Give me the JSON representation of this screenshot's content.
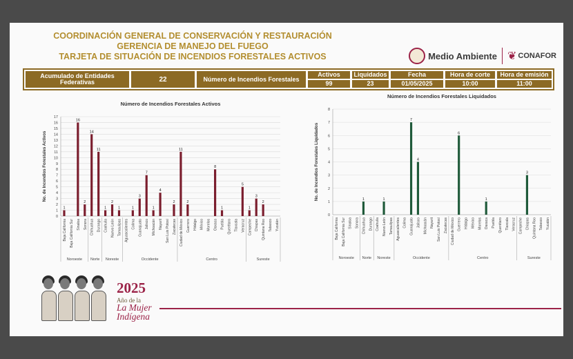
{
  "header": {
    "line1": "COORDINACIÓN GENERAL DE CONSERVACIÓN Y RESTAURACIÓN",
    "line2": "GERENCIA DE MANEJO DEL FUEGO",
    "line3": "TARJETA DE SITUACIÓN DE INCENDIOS FORESTALES ACTIVOS",
    "logo_medio_ambiente": "Medio Ambiente",
    "logo_conafor": "CONAFOR"
  },
  "stats": {
    "acumulado_label": "Acumulado de Entidades Federativas",
    "acumulado_value": "22",
    "numero_label": "Número de Incendios Forestales",
    "activos_label": "Activos",
    "activos_value": "99",
    "liquidados_label": "Liquidados",
    "liquidados_value": "23",
    "fecha_label": "Fecha",
    "fecha_value": "01/05/2025",
    "hora_corte_label": "Hora de corte",
    "hora_corte_value": "10:00",
    "hora_emision_label": "Hora de emisión",
    "hora_emision_value": "11:00"
  },
  "colors": {
    "gold": "#b38e2f",
    "stat_fill": "#8c6a24",
    "active_bar": "#7b1e2e",
    "liquidated_bar": "#1f5a3a",
    "accent": "#9b2247"
  },
  "footer": {
    "year": "2025",
    "subtitle": "Año de la",
    "name_line1": "La Mujer",
    "name_line2": "Indígena"
  },
  "chart_data": [
    {
      "type": "bar",
      "title": "Número de Incendios Forestales Activos",
      "ylabel": "No. de Incendios Forestales Activos",
      "ylim": [
        0,
        17
      ],
      "yticks": [
        0,
        1,
        2,
        3,
        4,
        5,
        6,
        7,
        8,
        9,
        10,
        11,
        12,
        13,
        14,
        15,
        16,
        17
      ],
      "grid": true,
      "categories": [
        "Baja California",
        "Baja California Sur",
        "Sinaloa",
        "Sonora",
        "Chihuahua",
        "Durango",
        "Coahuila",
        "Nuevo León",
        "Tamaulipas",
        "Aguascalientes",
        "Colima",
        "Guanajuato",
        "Jalisco",
        "Michoacán",
        "Nayarit",
        "San Luis Potosí",
        "Zacatecas",
        "Ciudad de México",
        "Guerrero",
        "Hidalgo",
        "México",
        "Morelos",
        "Oaxaca",
        "Puebla",
        "Querétaro",
        "Tlaxcala",
        "Veracruz",
        "Campeche",
        "Chiapas",
        "Quintana Roo",
        "Tabasco",
        "Yucatán"
      ],
      "values": [
        1,
        0,
        16,
        2,
        14,
        11,
        1,
        2,
        1,
        0,
        1,
        3,
        7,
        1,
        4,
        0,
        2,
        11,
        2,
        0,
        0,
        0,
        8,
        1,
        0,
        0,
        5,
        1,
        3,
        2,
        0,
        0
      ],
      "groups": [
        {
          "name": "Noroeste",
          "from": 0,
          "to": 3
        },
        {
          "name": "Norte",
          "from": 4,
          "to": 5
        },
        {
          "name": "Noreste",
          "from": 6,
          "to": 8
        },
        {
          "name": "Occidente",
          "from": 9,
          "to": 16
        },
        {
          "name": "Centro",
          "from": 17,
          "to": 26
        },
        {
          "name": "Sureste",
          "from": 27,
          "to": 31
        }
      ]
    },
    {
      "type": "bar",
      "title": "Número de Incendios Forestales Liquidados",
      "ylabel": "No. de Incendios Forestales Liquidados",
      "ylim": [
        0,
        8
      ],
      "yticks": [
        0,
        1,
        2,
        3,
        4,
        5,
        6,
        7,
        8
      ],
      "grid": true,
      "categories": [
        "Baja California",
        "Baja California Sur",
        "Sinaloa",
        "Sonora",
        "Chihuahua",
        "Durango",
        "Coahuila",
        "Nuevo León",
        "Tamaulipas",
        "Aguascalientes",
        "Colima",
        "Guanajuato",
        "Jalisco",
        "Michoacán",
        "Nayarit",
        "San Luis Potosí",
        "Zacatecas",
        "Ciudad de México",
        "Guerrero",
        "Hidalgo",
        "México",
        "Morelos",
        "Oaxaca",
        "Puebla",
        "Querétaro",
        "Tlaxcala",
        "Veracruz",
        "Campeche",
        "Chiapas",
        "Quintana Roo",
        "Tabasco",
        "Yucatán"
      ],
      "values": [
        0,
        0,
        0,
        0,
        1,
        0,
        0,
        1,
        0,
        0,
        0,
        7,
        4,
        0,
        0,
        0,
        0,
        0,
        6,
        0,
        0,
        0,
        1,
        0,
        0,
        0,
        0,
        0,
        3,
        0,
        0,
        0
      ],
      "groups": [
        {
          "name": "Noroeste",
          "from": 0,
          "to": 3
        },
        {
          "name": "Norte",
          "from": 4,
          "to": 5
        },
        {
          "name": "Noreste",
          "from": 6,
          "to": 8
        },
        {
          "name": "Occidente",
          "from": 9,
          "to": 16
        },
        {
          "name": "Centro",
          "from": 17,
          "to": 26
        },
        {
          "name": "Sureste",
          "from": 27,
          "to": 31
        }
      ]
    }
  ]
}
